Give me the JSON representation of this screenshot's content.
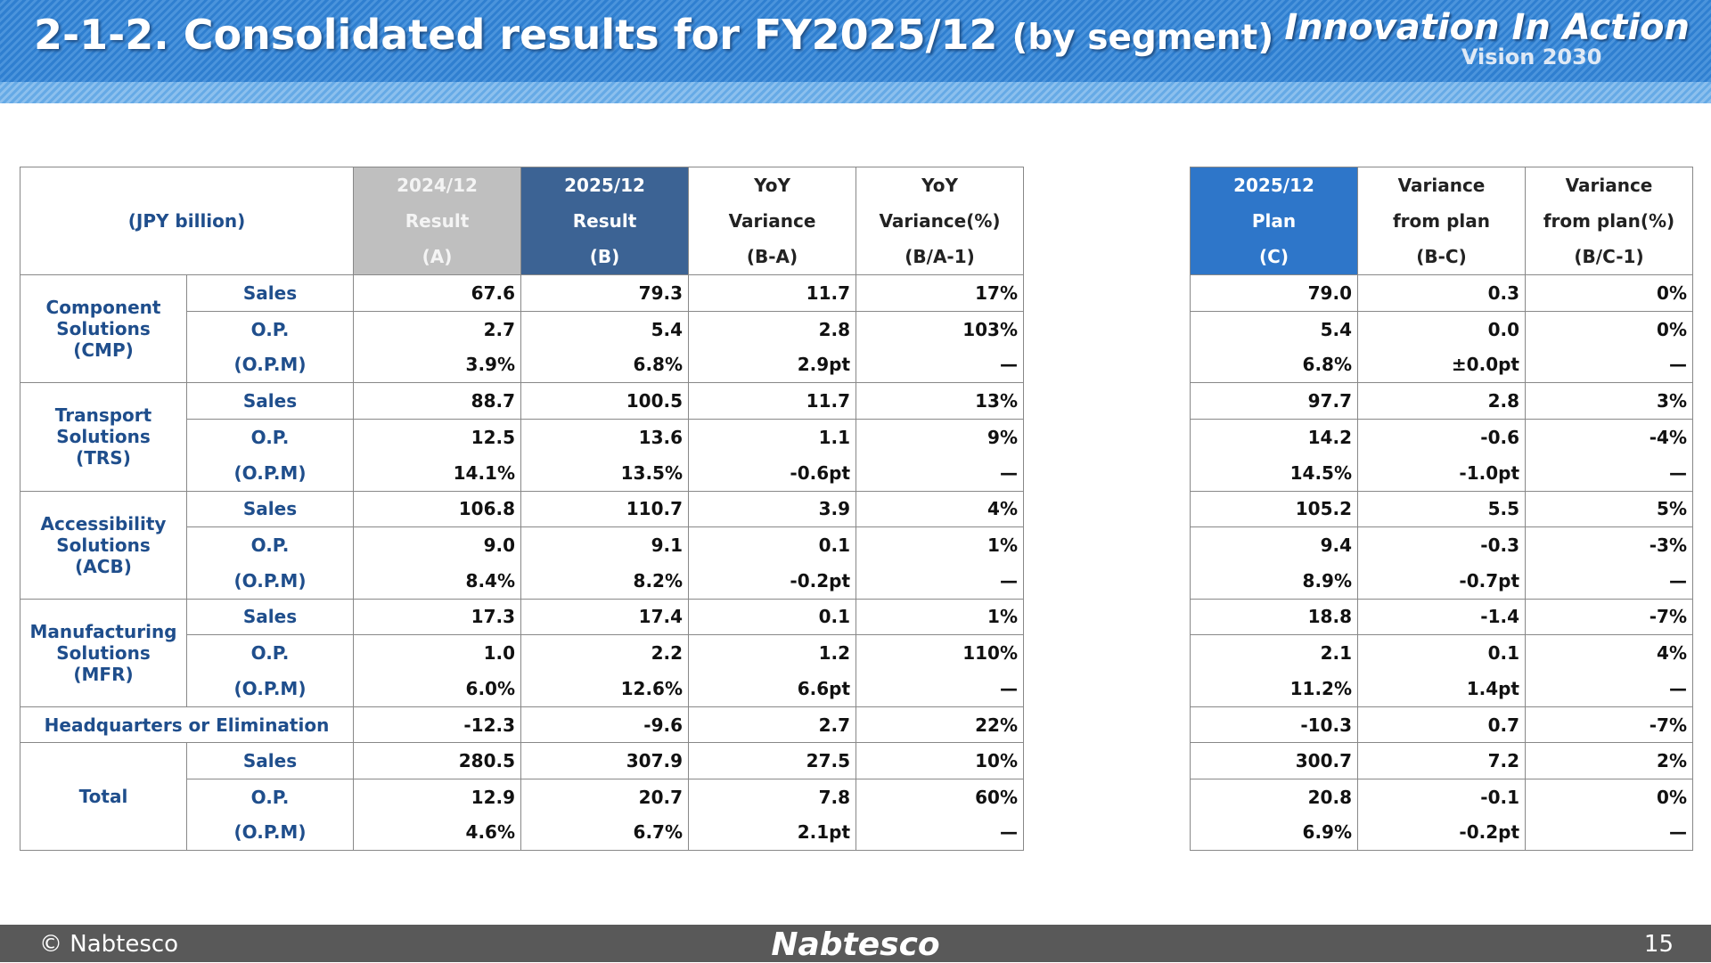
{
  "header": {
    "title": "2-1-2. Consolidated results for FY2025/12",
    "title_suffix": "(by segment)",
    "logo": "Innovation In Action",
    "logo_sub": "Vision 2030"
  },
  "table": {
    "unit": "(JPY billion)",
    "left_columns": [
      [
        "2024/12",
        "Result",
        "(A)"
      ],
      [
        "2025/12",
        "Result",
        "(B)"
      ],
      [
        "YoY",
        "Variance",
        "(B-A)"
      ],
      [
        "YoY",
        "Variance(%)",
        "(B/A-1)"
      ]
    ],
    "right_columns": [
      [
        "2025/12",
        "Plan",
        "(C)"
      ],
      [
        "Variance",
        "from plan",
        "(B-C)"
      ],
      [
        "Variance",
        "from plan(%)",
        "(B/C-1)"
      ]
    ],
    "segments": [
      {
        "name": "Component Solutions (CMP)",
        "rows": [
          {
            "label": "Sales",
            "cells": [
              "67.6",
              "79.3",
              "11.7",
              "17%",
              "79.0",
              "0.3",
              "0%"
            ]
          },
          {
            "label": "O.P.",
            "cells": [
              "2.7",
              "5.4",
              "2.8",
              "103%",
              "5.4",
              "0.0",
              "0%"
            ]
          },
          {
            "label": "(O.P.M)",
            "cells": [
              "3.9%",
              "6.8%",
              "2.9pt",
              "—",
              "6.8%",
              "±0.0pt",
              "—"
            ]
          }
        ]
      },
      {
        "name": "Transport Solutions (TRS)",
        "rows": [
          {
            "label": "Sales",
            "cells": [
              "88.7",
              "100.5",
              "11.7",
              "13%",
              "97.7",
              "2.8",
              "3%"
            ]
          },
          {
            "label": "O.P.",
            "cells": [
              "12.5",
              "13.6",
              "1.1",
              "9%",
              "14.2",
              "-0.6",
              "-4%"
            ]
          },
          {
            "label": "(O.P.M)",
            "cells": [
              "14.1%",
              "13.5%",
              "-0.6pt",
              "—",
              "14.5%",
              "-1.0pt",
              "—"
            ]
          }
        ]
      },
      {
        "name": "Accessibility Solutions (ACB)",
        "rows": [
          {
            "label": "Sales",
            "cells": [
              "106.8",
              "110.7",
              "3.9",
              "4%",
              "105.2",
              "5.5",
              "5%"
            ]
          },
          {
            "label": "O.P.",
            "cells": [
              "9.0",
              "9.1",
              "0.1",
              "1%",
              "9.4",
              "-0.3",
              "-3%"
            ]
          },
          {
            "label": "(O.P.M)",
            "cells": [
              "8.4%",
              "8.2%",
              "-0.2pt",
              "—",
              "8.9%",
              "-0.7pt",
              "—"
            ]
          }
        ]
      },
      {
        "name": "Manufacturing Solutions (MFR)",
        "rows": [
          {
            "label": "Sales",
            "cells": [
              "17.3",
              "17.4",
              "0.1",
              "1%",
              "18.8",
              "-1.4",
              "-7%"
            ]
          },
          {
            "label": "O.P.",
            "cells": [
              "1.0",
              "2.2",
              "1.2",
              "110%",
              "2.1",
              "0.1",
              "4%"
            ]
          },
          {
            "label": "(O.P.M)",
            "cells": [
              "6.0%",
              "12.6%",
              "6.6pt",
              "—",
              "11.2%",
              "1.4pt",
              "—"
            ]
          }
        ]
      },
      {
        "name": "Headquarters or Elimination",
        "rows": [
          {
            "cells": [
              "-12.3",
              "-9.6",
              "2.7",
              "22%",
              "-10.3",
              "0.7",
              "-7%"
            ]
          }
        ]
      },
      {
        "name": "Total",
        "rows": [
          {
            "label": "Sales",
            "cells": [
              "280.5",
              "307.9",
              "27.5",
              "10%",
              "300.7",
              "7.2",
              "2%"
            ]
          },
          {
            "label": "O.P.",
            "cells": [
              "12.9",
              "20.7",
              "7.8",
              "60%",
              "20.8",
              "-0.1",
              "0%"
            ]
          },
          {
            "label": "(O.P.M)",
            "cells": [
              "4.6%",
              "6.7%",
              "2.1pt",
              "—",
              "6.9%",
              "-0.2pt",
              "—"
            ]
          }
        ]
      }
    ]
  },
  "footer": {
    "copyright": "© Nabtesco",
    "brand": "Nabtesco",
    "page": "15"
  }
}
